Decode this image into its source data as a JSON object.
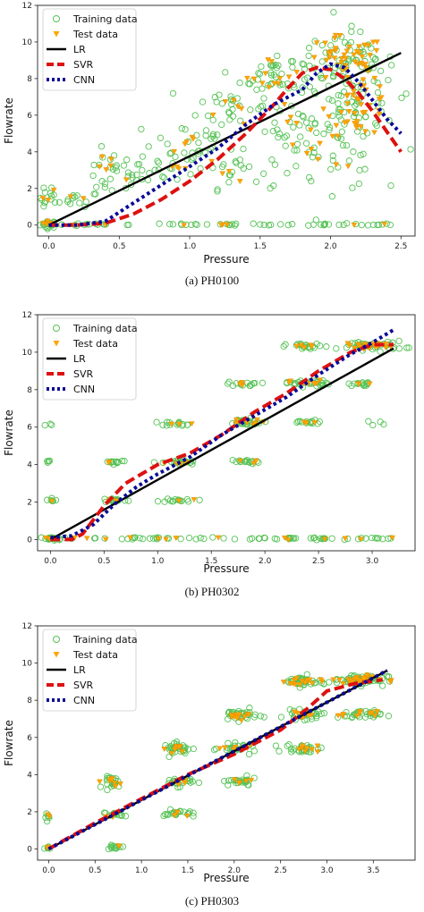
{
  "chart_data": [
    {
      "type": "scatter",
      "caption": "(a) PH0100",
      "xlabel": "Pressure",
      "ylabel": "Flowrate",
      "xlim": [
        -0.08,
        2.6
      ],
      "ylim": [
        -0.6,
        12
      ],
      "xticks": [
        "0.0",
        "0.5",
        "1.0",
        "1.5",
        "2.0",
        "2.5"
      ],
      "xtick_values": [
        0,
        0.5,
        1.0,
        1.5,
        2.0,
        2.5
      ],
      "yticks": [
        "0",
        "2",
        "4",
        "6",
        "8",
        "10",
        "12"
      ],
      "ytick_values": [
        0,
        2,
        4,
        6,
        8,
        10,
        12
      ],
      "legend": [
        "Training data",
        "Test data",
        "LR",
        "SVR",
        "CNN"
      ],
      "clusters": [
        {
          "x": 0.0,
          "y": 0.05,
          "sx": 0.03,
          "sy": 0.1,
          "n": 22,
          "test": 6
        },
        {
          "x": 0.0,
          "y": 1.5,
          "sx": 0.03,
          "sy": 0.35,
          "n": 12,
          "test": 3
        },
        {
          "x": 0.2,
          "y": 1.4,
          "sx": 0.08,
          "sy": 0.2,
          "n": 14,
          "test": 2
        },
        {
          "x": 0.45,
          "y": 2.8,
          "sx": 0.12,
          "sy": 0.6,
          "n": 30,
          "test": 6
        },
        {
          "x": 0.85,
          "y": 3.2,
          "sx": 0.12,
          "sy": 0.5,
          "n": 22,
          "test": 4
        },
        {
          "x": 1.0,
          "y": 4.6,
          "sx": 0.15,
          "sy": 0.6,
          "n": 26,
          "test": 5
        },
        {
          "x": 1.3,
          "y": 6.5,
          "sx": 0.12,
          "sy": 0.6,
          "n": 24,
          "test": 6
        },
        {
          "x": 1.3,
          "y": 3.0,
          "sx": 0.1,
          "sy": 0.5,
          "n": 20,
          "test": 4
        },
        {
          "x": 1.6,
          "y": 8.2,
          "sx": 0.12,
          "sy": 0.6,
          "n": 40,
          "test": 12
        },
        {
          "x": 1.75,
          "y": 5.2,
          "sx": 0.15,
          "sy": 0.9,
          "n": 36,
          "test": 8
        },
        {
          "x": 2.1,
          "y": 9.0,
          "sx": 0.18,
          "sy": 0.8,
          "n": 70,
          "test": 45
        },
        {
          "x": 2.2,
          "y": 6.5,
          "sx": 0.14,
          "sy": 1.0,
          "n": 60,
          "test": 40
        },
        {
          "x": 2.0,
          "y": 3.5,
          "sx": 0.18,
          "sy": 0.8,
          "n": 30,
          "test": 4
        }
      ],
      "zero_row": {
        "xmin": 0.0,
        "xmax": 2.45,
        "y": 0.02,
        "n": 60,
        "test": 8
      },
      "series": [
        {
          "name": "LR",
          "x": [
            0.0,
            2.5
          ],
          "y": [
            0.0,
            9.4
          ]
        },
        {
          "name": "SVR",
          "x": [
            0.0,
            0.2,
            0.4,
            0.6,
            0.8,
            1.0,
            1.2,
            1.4,
            1.6,
            1.7,
            1.8,
            1.9,
            2.0,
            2.1,
            2.2,
            2.3,
            2.4,
            2.5
          ],
          "y": [
            0.0,
            0.0,
            0.1,
            0.6,
            1.4,
            2.4,
            3.6,
            5.0,
            6.6,
            7.5,
            8.3,
            8.6,
            8.5,
            8.0,
            7.2,
            6.2,
            5.1,
            4.0
          ]
        },
        {
          "name": "CNN",
          "x": [
            0.0,
            0.2,
            0.4,
            0.6,
            0.8,
            1.0,
            1.2,
            1.4,
            1.6,
            1.7,
            1.8,
            1.9,
            2.0,
            2.1,
            2.2,
            2.3,
            2.4,
            2.5
          ],
          "y": [
            0.0,
            0.0,
            0.2,
            1.2,
            2.2,
            3.2,
            4.2,
            5.5,
            6.6,
            7.0,
            7.4,
            8.3,
            8.8,
            8.6,
            7.8,
            6.8,
            5.8,
            5.0
          ]
        }
      ]
    },
    {
      "type": "scatter",
      "caption": "(b) PH0302",
      "xlabel": "Pressure",
      "ylabel": "Flowrate",
      "xlim": [
        -0.12,
        3.4
      ],
      "ylim": [
        -0.6,
        12
      ],
      "xticks": [
        "0.0",
        "0.5",
        "1.0",
        "1.5",
        "2.0",
        "2.5",
        "3.0"
      ],
      "xtick_values": [
        0,
        0.5,
        1.0,
        1.5,
        2.0,
        2.5,
        3.0
      ],
      "yticks": [
        "0",
        "2",
        "4",
        "6",
        "8",
        "10",
        "12"
      ],
      "ytick_values": [
        0,
        2,
        4,
        6,
        8,
        10,
        12
      ],
      "legend": [
        "Training data",
        "Test data",
        "LR",
        "SVR",
        "CNN"
      ],
      "clusters": [
        {
          "x": 0.0,
          "y": 0.05,
          "sx": 0.05,
          "sy": 0.05,
          "n": 16,
          "test": 4
        },
        {
          "x": 0.0,
          "y": 2.1,
          "sx": 0.03,
          "sy": 0.08,
          "n": 6,
          "test": 1
        },
        {
          "x": 0.0,
          "y": 4.15,
          "sx": 0.03,
          "sy": 0.05,
          "n": 4,
          "test": 0
        },
        {
          "x": 0.0,
          "y": 6.15,
          "sx": 0.03,
          "sy": 0.05,
          "n": 3,
          "test": 0
        },
        {
          "x": 0.6,
          "y": 2.1,
          "sx": 0.06,
          "sy": 0.06,
          "n": 16,
          "test": 4
        },
        {
          "x": 0.6,
          "y": 4.15,
          "sx": 0.06,
          "sy": 0.05,
          "n": 12,
          "test": 2
        },
        {
          "x": 1.2,
          "y": 4.1,
          "sx": 0.08,
          "sy": 0.08,
          "n": 22,
          "test": 5
        },
        {
          "x": 1.2,
          "y": 2.1,
          "sx": 0.08,
          "sy": 0.05,
          "n": 14,
          "test": 2
        },
        {
          "x": 1.2,
          "y": 6.2,
          "sx": 0.08,
          "sy": 0.06,
          "n": 14,
          "test": 3
        },
        {
          "x": 1.8,
          "y": 6.25,
          "sx": 0.1,
          "sy": 0.1,
          "n": 30,
          "test": 8
        },
        {
          "x": 1.8,
          "y": 4.15,
          "sx": 0.08,
          "sy": 0.06,
          "n": 16,
          "test": 3
        },
        {
          "x": 1.8,
          "y": 8.3,
          "sx": 0.08,
          "sy": 0.06,
          "n": 14,
          "test": 3
        },
        {
          "x": 2.4,
          "y": 8.35,
          "sx": 0.1,
          "sy": 0.1,
          "n": 30,
          "test": 8
        },
        {
          "x": 2.4,
          "y": 6.25,
          "sx": 0.08,
          "sy": 0.06,
          "n": 16,
          "test": 3
        },
        {
          "x": 2.4,
          "y": 10.3,
          "sx": 0.1,
          "sy": 0.08,
          "n": 20,
          "test": 5
        },
        {
          "x": 3.0,
          "y": 10.35,
          "sx": 0.15,
          "sy": 0.12,
          "n": 45,
          "test": 20
        },
        {
          "x": 2.9,
          "y": 8.3,
          "sx": 0.06,
          "sy": 0.05,
          "n": 14,
          "test": 3
        },
        {
          "x": 3.0,
          "y": 6.2,
          "sx": 0.05,
          "sy": 0.05,
          "n": 4,
          "test": 0
        }
      ],
      "zero_row": {
        "xmin": 0.0,
        "xmax": 3.2,
        "y": 0.05,
        "n": 70,
        "test": 14
      },
      "series": [
        {
          "name": "LR",
          "x": [
            0.0,
            3.2
          ],
          "y": [
            0.0,
            10.2
          ]
        },
        {
          "name": "SVR",
          "x": [
            0.0,
            0.2,
            0.3,
            0.5,
            0.7,
            1.0,
            1.3,
            1.6,
            1.9,
            2.2,
            2.5,
            2.8,
            3.0,
            3.2
          ],
          "y": [
            0.0,
            0.0,
            0.3,
            1.8,
            3.0,
            4.0,
            4.6,
            5.6,
            6.8,
            7.8,
            9.0,
            10.0,
            10.4,
            10.4
          ]
        },
        {
          "name": "CNN",
          "x": [
            0.0,
            0.2,
            0.4,
            0.6,
            0.8,
            1.0,
            1.3,
            1.6,
            1.9,
            2.2,
            2.5,
            2.8,
            3.0,
            3.2
          ],
          "y": [
            0.1,
            0.2,
            0.8,
            1.9,
            2.8,
            3.5,
            4.4,
            5.6,
            6.6,
            7.6,
            8.8,
            9.9,
            10.5,
            11.2
          ]
        }
      ]
    },
    {
      "type": "scatter",
      "caption": "(c) PH0303",
      "xlabel": "Pressure",
      "ylabel": "Flowrate",
      "xlim": [
        -0.12,
        3.95
      ],
      "ylim": [
        -0.6,
        12
      ],
      "xticks": [
        "0.0",
        "0.5",
        "1.0",
        "1.5",
        "2.0",
        "2.5",
        "3.0",
        "3.5"
      ],
      "xtick_values": [
        0,
        0.5,
        1.0,
        1.5,
        2.0,
        2.5,
        3.0,
        3.5
      ],
      "yticks": [
        "0",
        "2",
        "4",
        "6",
        "8",
        "10",
        "12"
      ],
      "ytick_values": [
        0,
        2,
        4,
        6,
        8,
        10,
        12
      ],
      "legend": [
        "Training data",
        "Test data",
        "LR",
        "SVR",
        "CNN"
      ],
      "clusters": [
        {
          "x": 0.0,
          "y": 0.05,
          "sx": 0.02,
          "sy": 0.05,
          "n": 6,
          "test": 2
        },
        {
          "x": 0.0,
          "y": 1.7,
          "sx": 0.02,
          "sy": 0.15,
          "n": 6,
          "test": 2
        },
        {
          "x": 0.7,
          "y": 3.6,
          "sx": 0.05,
          "sy": 0.15,
          "n": 22,
          "test": 8
        },
        {
          "x": 0.7,
          "y": 1.85,
          "sx": 0.05,
          "sy": 0.08,
          "n": 14,
          "test": 3
        },
        {
          "x": 0.7,
          "y": 0.1,
          "sx": 0.06,
          "sy": 0.05,
          "n": 12,
          "test": 2
        },
        {
          "x": 1.4,
          "y": 5.4,
          "sx": 0.08,
          "sy": 0.15,
          "n": 30,
          "test": 10
        },
        {
          "x": 1.4,
          "y": 3.6,
          "sx": 0.08,
          "sy": 0.12,
          "n": 24,
          "test": 6
        },
        {
          "x": 1.4,
          "y": 1.9,
          "sx": 0.08,
          "sy": 0.1,
          "n": 20,
          "test": 4
        },
        {
          "x": 2.05,
          "y": 7.2,
          "sx": 0.1,
          "sy": 0.15,
          "n": 34,
          "test": 12
        },
        {
          "x": 2.05,
          "y": 5.4,
          "sx": 0.1,
          "sy": 0.12,
          "n": 26,
          "test": 6
        },
        {
          "x": 2.05,
          "y": 3.6,
          "sx": 0.1,
          "sy": 0.12,
          "n": 24,
          "test": 5
        },
        {
          "x": 2.75,
          "y": 9.0,
          "sx": 0.12,
          "sy": 0.15,
          "n": 40,
          "test": 16
        },
        {
          "x": 2.75,
          "y": 7.2,
          "sx": 0.1,
          "sy": 0.12,
          "n": 28,
          "test": 8
        },
        {
          "x": 2.75,
          "y": 5.4,
          "sx": 0.1,
          "sy": 0.12,
          "n": 28,
          "test": 8
        },
        {
          "x": 3.35,
          "y": 9.1,
          "sx": 0.15,
          "sy": 0.15,
          "n": 55,
          "test": 30
        },
        {
          "x": 3.35,
          "y": 7.2,
          "sx": 0.12,
          "sy": 0.12,
          "n": 30,
          "test": 10
        }
      ],
      "zero_row": {
        "xmin": 0.0,
        "xmax": 0.0,
        "y": 0.05,
        "n": 0,
        "test": 0
      },
      "series": [
        {
          "name": "LR",
          "x": [
            0.0,
            3.65
          ],
          "y": [
            0.0,
            9.6
          ]
        },
        {
          "name": "SVR",
          "x": [
            0.0,
            0.5,
            1.0,
            1.5,
            2.0,
            2.5,
            2.8,
            3.0,
            3.3,
            3.6
          ],
          "y": [
            0.0,
            1.4,
            2.7,
            4.0,
            5.1,
            6.4,
            7.6,
            8.5,
            8.9,
            9.1
          ]
        },
        {
          "name": "CNN",
          "x": [
            0.0,
            3.65
          ],
          "y": [
            0.0,
            9.6
          ]
        }
      ]
    }
  ]
}
